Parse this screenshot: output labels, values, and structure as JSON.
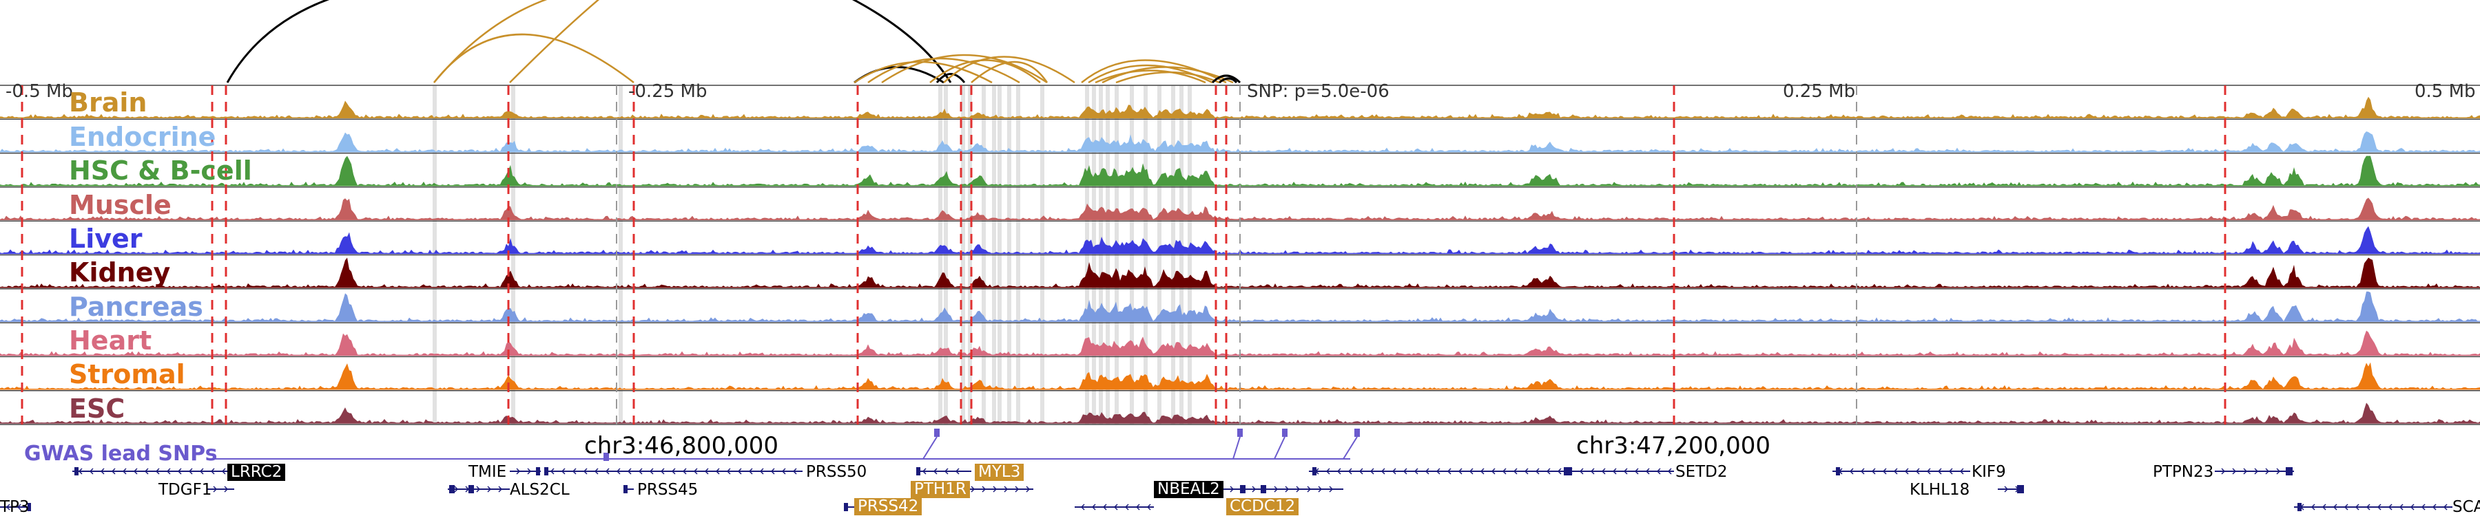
{
  "tracks": [
    {
      "id": "brain",
      "label": "Brain",
      "color": "#c8902a"
    },
    {
      "id": "endocrine",
      "label": "Endocrine",
      "color": "#8fbcee"
    },
    {
      "id": "hsc",
      "label": "HSC & B-cell",
      "color": "#4a9a3f"
    },
    {
      "id": "muscle",
      "label": "Muscle",
      "color": "#c45f5f"
    },
    {
      "id": "liver",
      "label": "Liver",
      "color": "#3c3ce0"
    },
    {
      "id": "kidney",
      "label": "Kidney",
      "color": "#6b0000"
    },
    {
      "id": "pancreas",
      "label": "Pancreas",
      "color": "#7b9be0"
    },
    {
      "id": "heart",
      "label": "Heart",
      "color": "#d86a7f"
    },
    {
      "id": "stromal",
      "label": "Stromal",
      "color": "#ee7a10"
    },
    {
      "id": "esc",
      "label": "ESC",
      "color": "#8a3a4a"
    }
  ],
  "ruler": {
    "left": "-0.5 Mb",
    "mid_left": "-0.25 Mb",
    "mid_right": "0.25 Mb",
    "right": "0.5 Mb"
  },
  "snp_note": "SNP: p=5.0e-06",
  "coordinates": {
    "left": "chr3:46,800,000",
    "right": "chr3:47,200,000"
  },
  "gwas_label": "GWAS lead SNPs",
  "genes": {
    "lrrc2": "LRRC2",
    "tdgf1": "TDGF1",
    "tmie": "TMIE",
    "als2cl": "ALS2CL",
    "prss50": "PRSS50",
    "prss45": "PRSS45",
    "myl3": "MYL3",
    "pth1r": "PTH1R",
    "prss42": "PRSS42",
    "nbeal2": "NBEAL2",
    "ccdc12": "CCDC12",
    "setd2": "SETD2",
    "kif9": "KIF9",
    "klhl18": "KLHL18",
    "ptpn23": "PTPN23",
    "left_cut": "TP3",
    "right_cut": "SCA"
  },
  "colors": {
    "arc_gold": "#c8902a",
    "arc_black": "#000000",
    "red_dash": "#e03030",
    "gray_band": "#d8d8d8",
    "snp_purple": "#6a5acd",
    "gene_navy": "#1a1a7a"
  }
}
